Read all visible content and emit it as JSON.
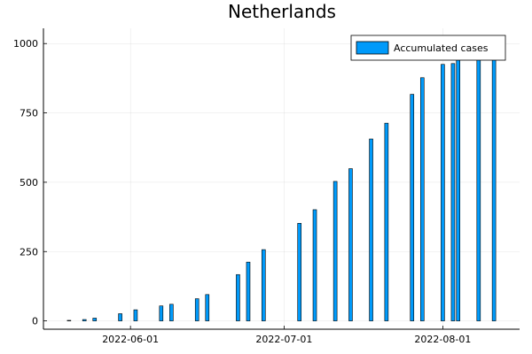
{
  "chart_data": {
    "type": "bar",
    "title": "Netherlands",
    "xlabel": "",
    "ylabel": "",
    "x_type": "date",
    "xlim": [
      "2022-05-15",
      "2022-08-16"
    ],
    "ylim": [
      -30,
      1055
    ],
    "x_ticks": [
      "2022-06-01",
      "2022-07-01",
      "2022-08-01"
    ],
    "y_ticks": [
      0,
      250,
      500,
      750,
      1000
    ],
    "grid": true,
    "legend": "top-right",
    "series": [
      {
        "name": "Accumulated cases",
        "color": "#009AFA",
        "points": [
          {
            "x": "2022-05-20",
            "y": 2
          },
          {
            "x": "2022-05-23",
            "y": 5
          },
          {
            "x": "2022-05-25",
            "y": 10
          },
          {
            "x": "2022-05-30",
            "y": 26
          },
          {
            "x": "2022-06-02",
            "y": 40
          },
          {
            "x": "2022-06-07",
            "y": 54
          },
          {
            "x": "2022-06-09",
            "y": 60
          },
          {
            "x": "2022-06-14",
            "y": 80
          },
          {
            "x": "2022-06-16",
            "y": 95
          },
          {
            "x": "2022-06-22",
            "y": 167
          },
          {
            "x": "2022-06-24",
            "y": 212
          },
          {
            "x": "2022-06-27",
            "y": 257
          },
          {
            "x": "2022-07-04",
            "y": 352
          },
          {
            "x": "2022-07-07",
            "y": 401
          },
          {
            "x": "2022-07-11",
            "y": 503
          },
          {
            "x": "2022-07-14",
            "y": 549
          },
          {
            "x": "2022-07-18",
            "y": 656
          },
          {
            "x": "2022-07-21",
            "y": 713
          },
          {
            "x": "2022-07-26",
            "y": 817
          },
          {
            "x": "2022-07-28",
            "y": 877
          },
          {
            "x": "2022-08-01",
            "y": 925
          },
          {
            "x": "2022-08-03",
            "y": 928
          },
          {
            "x": "2022-08-04",
            "y": 940
          },
          {
            "x": "2022-08-08",
            "y": 960
          },
          {
            "x": "2022-08-11",
            "y": 1025
          }
        ]
      }
    ]
  }
}
